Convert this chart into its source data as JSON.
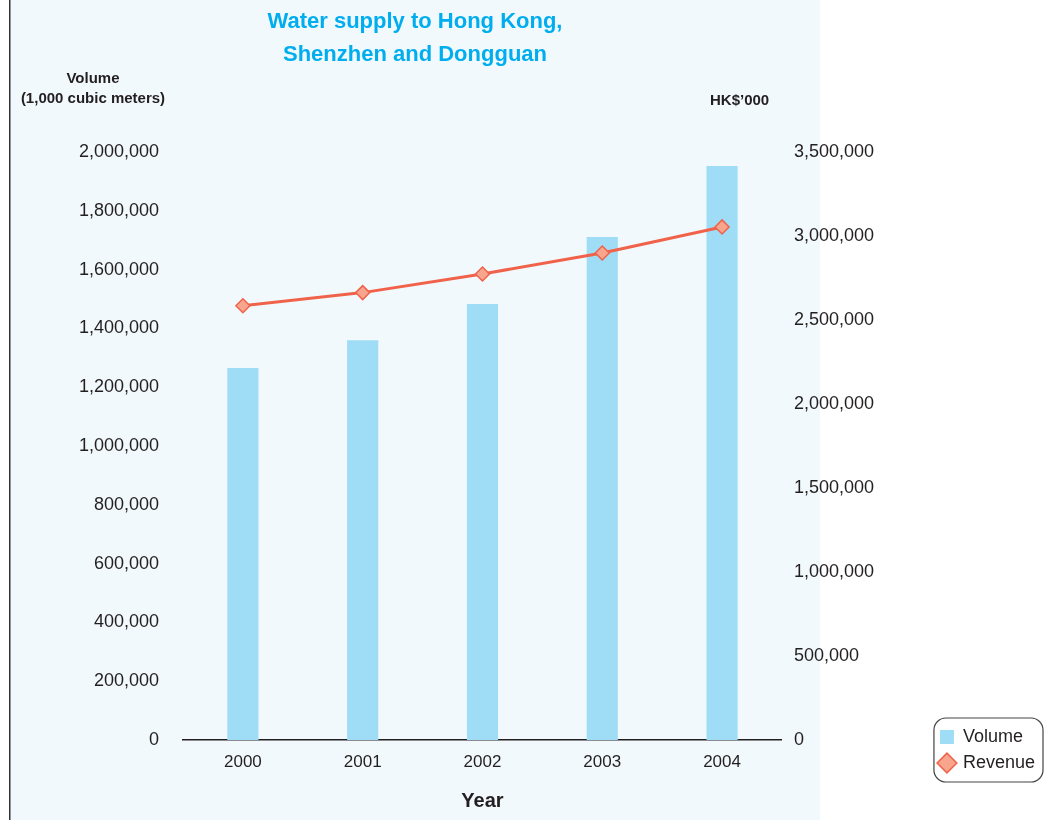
{
  "chart_data": {
    "type": "bar",
    "title": "Water supply to Hong Kong,\nShenzhen and Dongguan",
    "xlabel": "Year",
    "ylabel": "Volume\n(1,000 cubic meters)",
    "y2label": "HK$’000",
    "categories": [
      "2000",
      "2001",
      "2002",
      "2003",
      "2004"
    ],
    "series": [
      {
        "name": "Volume",
        "color": "#9fdcf5",
        "values": [
          1265000,
          1360000,
          1483000,
          1711000,
          1952000
        ]
      },
      {
        "name": "Revenue",
        "type": "line",
        "axis": "y2",
        "color": "#f0624a",
        "marker": "diamond",
        "values": [
          2585000,
          2663000,
          2774000,
          2899000,
          3054000
        ]
      }
    ],
    "ylim": [
      0,
      2000000
    ],
    "yticks": [
      0,
      {
        "value": 200000,
        "label": "200,000"
      },
      {
        "value": 400000,
        "label": "400,000"
      },
      {
        "value": 600000,
        "label": "600,000"
      },
      {
        "value": 800000,
        "label": "800,000"
      },
      {
        "value": 1000000,
        "label": "1,000,000"
      },
      {
        "value": 1200000,
        "label": "1,200,000"
      },
      {
        "value": 1400000,
        "label": "1,400,000"
      },
      {
        "value": 1600000,
        "label": "1,600,000"
      },
      {
        "value": 1800000,
        "label": "1,800,000"
      },
      {
        "value": 2000000,
        "label": "2,000,000"
      }
    ],
    "y2lim": [
      0,
      3500000
    ],
    "y2ticks": [
      0,
      {
        "value": 500000,
        "label": "500,000"
      },
      {
        "value": 1000000,
        "label": "1,000,000"
      },
      {
        "value": 1500000,
        "label": "1,500,000"
      },
      {
        "value": 2000000,
        "label": "2,000,000"
      },
      {
        "value": 2500000,
        "label": "2,500,000"
      },
      {
        "value": 3000000,
        "label": "3,000,000"
      },
      {
        "value": 3500000,
        "label": "3,500,000"
      }
    ],
    "grid": false,
    "legend": "bottom right"
  }
}
